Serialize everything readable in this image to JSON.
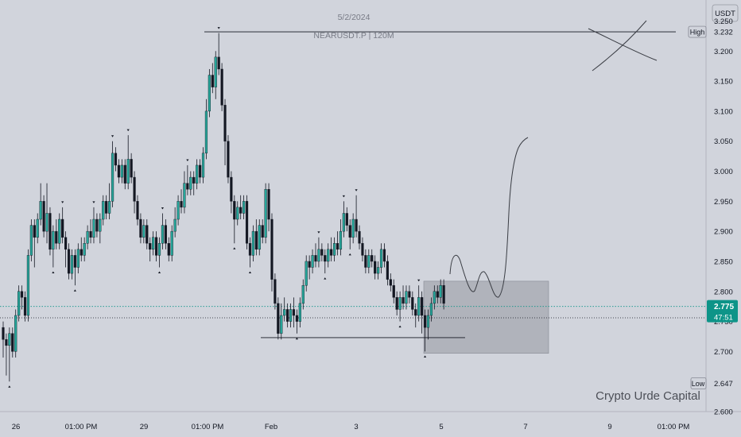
{
  "header": {
    "date": "5/2/2024",
    "symbol": "NEARUSDT.P | 120M"
  },
  "currency_label": "USDT",
  "watermark": "Crypto Urde Capital",
  "price_tags": {
    "high_label": "High",
    "high_value": "3.232",
    "low_label": "Low",
    "low_value": "2.647",
    "last_value": "2.775",
    "countdown": "47:51"
  },
  "colors": {
    "background": "#d1d4dc",
    "up": "#26a69a",
    "down": "#131722",
    "last_price_tag": "#0d9488",
    "zone": "#9598a1"
  },
  "chart_data": {
    "type": "candlestick",
    "title": "NEARUSDT.P | 120M",
    "date": "5/2/2024",
    "ylim": [
      2.6,
      3.285
    ],
    "y_ticks": [
      "3.250",
      "3.232",
      "3.200",
      "3.150",
      "3.100",
      "3.050",
      "3.000",
      "2.950",
      "2.900",
      "2.850",
      "2.800",
      "2.775",
      "2.750",
      "2.700",
      "2.647",
      "2.600"
    ],
    "x_ticks": [
      "26",
      "01:00 PM",
      "29",
      "01:00 PM",
      "Feb",
      "3",
      "5",
      "7",
      "9",
      "01:00 PM"
    ],
    "high": 3.232,
    "low": 2.647,
    "last": 2.775,
    "reference_level": 2.756,
    "annotations": {
      "high_line": 3.232,
      "support_line": 2.723,
      "box_zone": [
        2.697,
        2.817
      ]
    },
    "candles": [
      [
        2.74,
        2.72,
        2.75,
        2.69
      ],
      [
        2.72,
        2.71,
        2.73,
        2.66
      ],
      [
        2.71,
        2.73,
        2.74,
        2.65
      ],
      [
        2.73,
        2.7,
        2.74,
        2.69
      ],
      [
        2.7,
        2.76,
        2.77,
        2.69
      ],
      [
        2.76,
        2.8,
        2.81,
        2.75
      ],
      [
        2.8,
        2.79,
        2.81,
        2.77
      ],
      [
        2.79,
        2.76,
        2.8,
        2.75
      ],
      [
        2.76,
        2.86,
        2.87,
        2.75
      ],
      [
        2.86,
        2.91,
        2.92,
        2.85
      ],
      [
        2.91,
        2.89,
        2.92,
        2.84
      ],
      [
        2.89,
        2.92,
        2.93,
        2.88
      ],
      [
        2.92,
        2.95,
        2.98,
        2.91
      ],
      [
        2.95,
        2.9,
        2.96,
        2.89
      ],
      [
        2.9,
        2.93,
        2.98,
        2.88
      ],
      [
        2.93,
        2.87,
        2.94,
        2.86
      ],
      [
        2.87,
        2.9,
        2.91,
        2.84
      ],
      [
        2.9,
        2.88,
        2.92,
        2.87
      ],
      [
        2.88,
        2.92,
        2.93,
        2.87
      ],
      [
        2.92,
        2.89,
        2.94,
        2.88
      ],
      [
        2.89,
        2.87,
        2.9,
        2.84
      ],
      [
        2.87,
        2.83,
        2.88,
        2.82
      ],
      [
        2.83,
        2.86,
        2.87,
        2.82
      ],
      [
        2.86,
        2.84,
        2.87,
        2.81
      ],
      [
        2.84,
        2.87,
        2.88,
        2.83
      ],
      [
        2.87,
        2.86,
        2.89,
        2.85
      ],
      [
        2.86,
        2.88,
        2.89,
        2.85
      ],
      [
        2.88,
        2.9,
        2.91,
        2.87
      ],
      [
        2.9,
        2.89,
        2.92,
        2.88
      ],
      [
        2.89,
        2.92,
        2.94,
        2.88
      ],
      [
        2.92,
        2.9,
        2.93,
        2.89
      ],
      [
        2.9,
        2.92,
        2.93,
        2.88
      ],
      [
        2.92,
        2.95,
        2.96,
        2.91
      ],
      [
        2.95,
        2.93,
        2.96,
        2.92
      ],
      [
        2.93,
        2.95,
        2.98,
        2.92
      ],
      [
        2.95,
        3.03,
        3.05,
        2.94
      ],
      [
        3.03,
        3.01,
        3.04,
        3.0
      ],
      [
        3.01,
        2.99,
        3.02,
        2.98
      ],
      [
        2.99,
        3.01,
        3.02,
        2.98
      ],
      [
        3.01,
        2.98,
        3.02,
        2.97
      ],
      [
        2.98,
        3.02,
        3.06,
        2.97
      ],
      [
        3.02,
        2.99,
        3.03,
        2.98
      ],
      [
        2.99,
        2.95,
        3.0,
        2.93
      ],
      [
        2.95,
        2.92,
        2.96,
        2.91
      ],
      [
        2.92,
        2.89,
        2.93,
        2.88
      ],
      [
        2.89,
        2.91,
        2.92,
        2.88
      ],
      [
        2.91,
        2.88,
        2.92,
        2.87
      ],
      [
        2.88,
        2.87,
        2.89,
        2.85
      ],
      [
        2.87,
        2.89,
        2.9,
        2.86
      ],
      [
        2.89,
        2.86,
        2.9,
        2.85
      ],
      [
        2.86,
        2.88,
        2.89,
        2.84
      ],
      [
        2.88,
        2.91,
        2.93,
        2.87
      ],
      [
        2.91,
        2.88,
        2.92,
        2.87
      ],
      [
        2.88,
        2.86,
        2.89,
        2.85
      ],
      [
        2.86,
        2.9,
        2.91,
        2.85
      ],
      [
        2.9,
        2.92,
        2.94,
        2.89
      ],
      [
        2.92,
        2.95,
        2.96,
        2.91
      ],
      [
        2.95,
        2.94,
        2.97,
        2.93
      ],
      [
        2.94,
        2.98,
        3.0,
        2.93
      ],
      [
        2.98,
        2.97,
        3.01,
        2.96
      ],
      [
        2.97,
        2.99,
        3.0,
        2.96
      ],
      [
        2.99,
        2.98,
        3.0,
        2.96
      ],
      [
        2.98,
        3.01,
        3.02,
        2.97
      ],
      [
        3.01,
        2.99,
        3.02,
        2.98
      ],
      [
        2.99,
        3.03,
        3.04,
        2.98
      ],
      [
        3.03,
        3.1,
        3.12,
        3.02
      ],
      [
        3.1,
        3.16,
        3.17,
        3.09
      ],
      [
        3.16,
        3.14,
        3.18,
        3.13
      ],
      [
        3.14,
        3.19,
        3.2,
        3.12
      ],
      [
        3.19,
        3.17,
        3.23,
        3.16
      ],
      [
        3.17,
        3.11,
        3.18,
        3.1
      ],
      [
        3.11,
        3.05,
        3.12,
        3.01
      ],
      [
        3.05,
        2.99,
        3.06,
        2.98
      ],
      [
        2.99,
        2.95,
        3.0,
        2.93
      ],
      [
        2.95,
        2.92,
        2.96,
        2.88
      ],
      [
        2.92,
        2.94,
        2.95,
        2.91
      ],
      [
        2.94,
        2.93,
        2.96,
        2.92
      ],
      [
        2.93,
        2.95,
        2.96,
        2.92
      ],
      [
        2.95,
        2.88,
        2.96,
        2.87
      ],
      [
        2.88,
        2.86,
        2.89,
        2.84
      ],
      [
        2.86,
        2.9,
        2.91,
        2.85
      ],
      [
        2.9,
        2.87,
        2.92,
        2.86
      ],
      [
        2.87,
        2.91,
        2.92,
        2.86
      ],
      [
        2.91,
        2.89,
        2.92,
        2.88
      ],
      [
        2.89,
        2.97,
        2.98,
        2.88
      ],
      [
        2.97,
        2.92,
        2.98,
        2.9
      ],
      [
        2.92,
        2.82,
        2.93,
        2.8
      ],
      [
        2.82,
        2.78,
        2.83,
        2.77
      ],
      [
        2.78,
        2.73,
        2.79,
        2.72
      ],
      [
        2.73,
        2.76,
        2.78,
        2.72
      ],
      [
        2.76,
        2.77,
        2.79,
        2.75
      ],
      [
        2.77,
        2.75,
        2.78,
        2.74
      ],
      [
        2.75,
        2.77,
        2.78,
        2.74
      ],
      [
        2.77,
        2.76,
        2.79,
        2.74
      ],
      [
        2.76,
        2.75,
        2.77,
        2.73
      ],
      [
        2.75,
        2.78,
        2.79,
        2.74
      ],
      [
        2.78,
        2.81,
        2.82,
        2.77
      ],
      [
        2.81,
        2.85,
        2.86,
        2.8
      ],
      [
        2.85,
        2.84,
        2.86,
        2.82
      ],
      [
        2.84,
        2.86,
        2.87,
        2.83
      ],
      [
        2.86,
        2.85,
        2.88,
        2.84
      ],
      [
        2.85,
        2.87,
        2.89,
        2.84
      ],
      [
        2.87,
        2.86,
        2.88,
        2.85
      ],
      [
        2.86,
        2.85,
        2.87,
        2.83
      ],
      [
        2.85,
        2.87,
        2.88,
        2.84
      ],
      [
        2.87,
        2.86,
        2.89,
        2.85
      ],
      [
        2.86,
        2.88,
        2.89,
        2.85
      ],
      [
        2.88,
        2.87,
        2.9,
        2.86
      ],
      [
        2.87,
        2.9,
        2.92,
        2.86
      ],
      [
        2.9,
        2.93,
        2.95,
        2.89
      ],
      [
        2.93,
        2.91,
        2.94,
        2.9
      ],
      [
        2.91,
        2.89,
        2.92,
        2.87
      ],
      [
        2.89,
        2.92,
        2.93,
        2.88
      ],
      [
        2.92,
        2.9,
        2.96,
        2.89
      ],
      [
        2.9,
        2.88,
        2.91,
        2.87
      ],
      [
        2.88,
        2.86,
        2.89,
        2.85
      ],
      [
        2.86,
        2.84,
        2.87,
        2.83
      ],
      [
        2.84,
        2.86,
        2.87,
        2.83
      ],
      [
        2.86,
        2.85,
        2.87,
        2.84
      ],
      [
        2.85,
        2.83,
        2.86,
        2.82
      ],
      [
        2.83,
        2.84,
        2.85,
        2.82
      ],
      [
        2.84,
        2.87,
        2.88,
        2.83
      ],
      [
        2.87,
        2.85,
        2.88,
        2.84
      ],
      [
        2.85,
        2.82,
        2.86,
        2.81
      ],
      [
        2.82,
        2.81,
        2.83,
        2.8
      ],
      [
        2.81,
        2.79,
        2.82,
        2.78
      ],
      [
        2.79,
        2.77,
        2.8,
        2.76
      ],
      [
        2.77,
        2.79,
        2.8,
        2.75
      ],
      [
        2.79,
        2.78,
        2.81,
        2.77
      ],
      [
        2.78,
        2.8,
        2.81,
        2.77
      ],
      [
        2.8,
        2.79,
        2.81,
        2.78
      ],
      [
        2.79,
        2.77,
        2.8,
        2.76
      ],
      [
        2.77,
        2.76,
        2.78,
        2.74
      ],
      [
        2.76,
        2.79,
        2.81,
        2.75
      ],
      [
        2.79,
        2.76,
        2.8,
        2.73
      ],
      [
        2.76,
        2.74,
        2.77,
        2.7
      ],
      [
        2.74,
        2.76,
        2.77,
        2.72
      ],
      [
        2.76,
        2.78,
        2.79,
        2.75
      ],
      [
        2.78,
        2.8,
        2.81,
        2.77
      ],
      [
        2.8,
        2.79,
        2.81,
        2.78
      ],
      [
        2.79,
        2.81,
        2.82,
        2.78
      ],
      [
        2.81,
        2.78,
        2.82,
        2.77
      ]
    ]
  }
}
